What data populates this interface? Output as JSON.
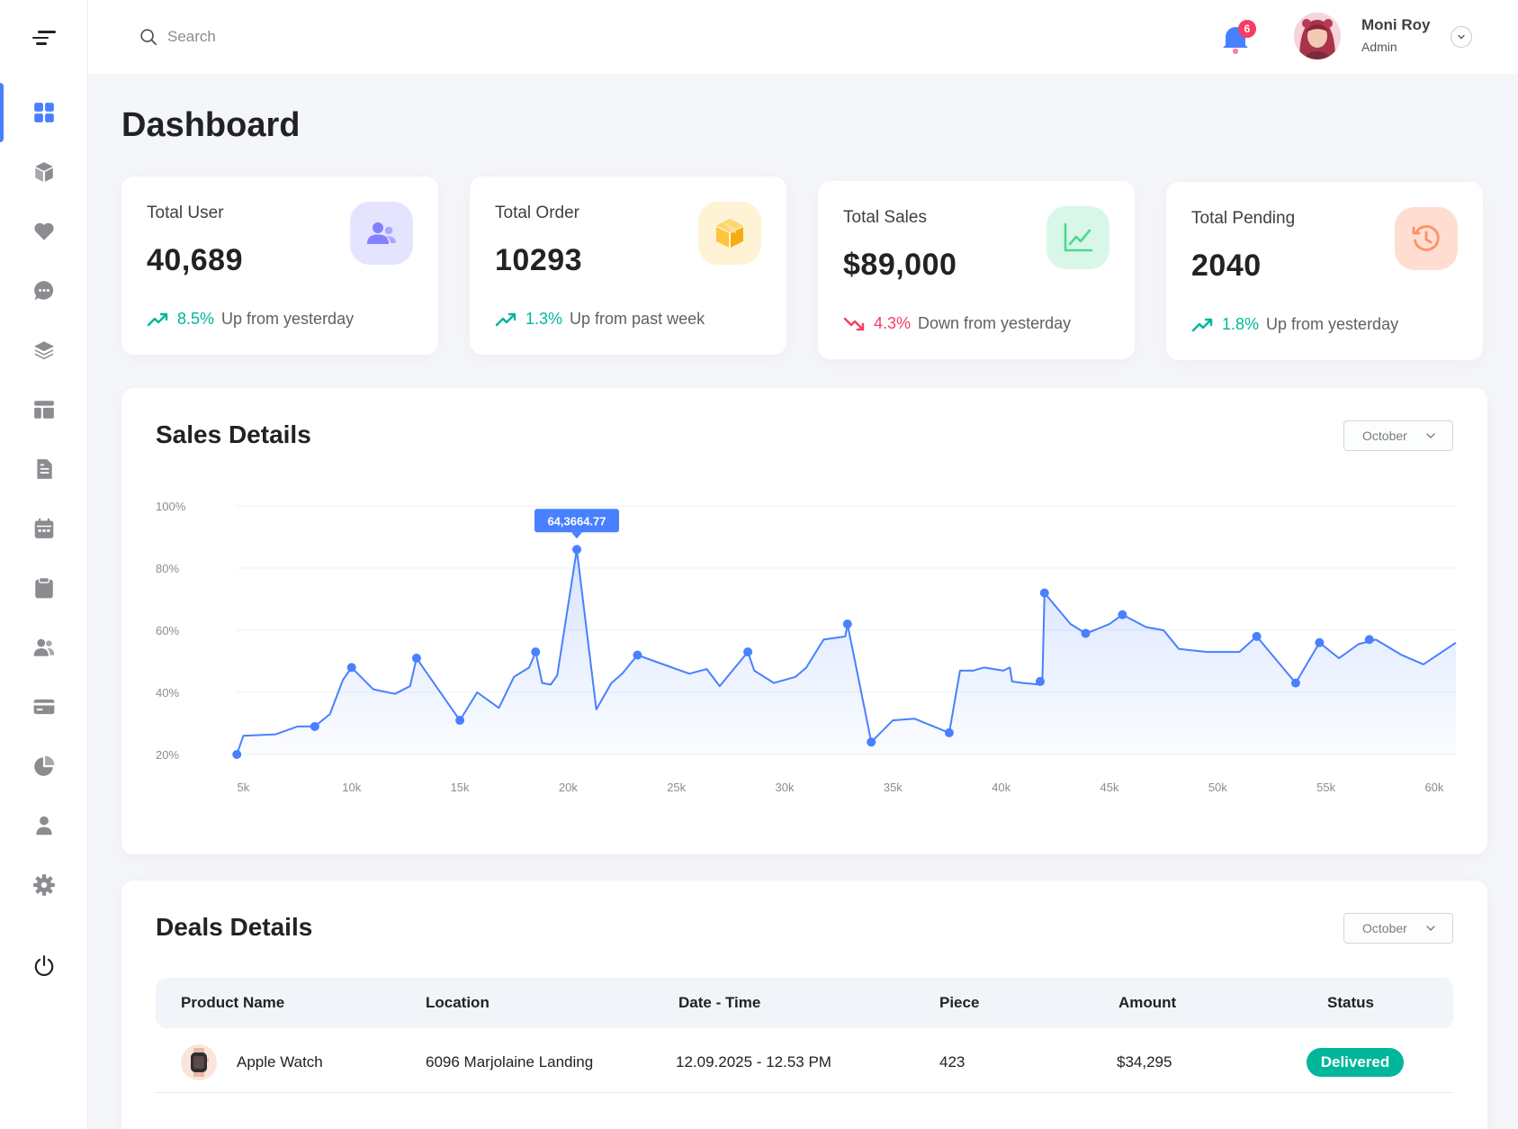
{
  "search": {
    "placeholder": "Search"
  },
  "notifications": {
    "count": "6"
  },
  "user": {
    "name": "Moni Roy",
    "role": "Admin"
  },
  "page": {
    "title": "Dashboard"
  },
  "sidebar": {
    "items": [
      {
        "icon": "dashboard-icon",
        "active": true
      },
      {
        "icon": "products-icon"
      },
      {
        "icon": "favorites-icon"
      },
      {
        "icon": "inbox-icon"
      },
      {
        "icon": "order-lists-icon"
      },
      {
        "icon": "product-stock-icon"
      },
      {
        "icon": "pricing-icon"
      },
      {
        "icon": "calendar-icon"
      },
      {
        "icon": "todo-icon"
      },
      {
        "icon": "contact-icon"
      },
      {
        "icon": "invoice-icon"
      },
      {
        "icon": "charts-icon"
      },
      {
        "icon": "team-icon"
      },
      {
        "icon": "settings-icon"
      },
      {
        "icon": "logout-icon"
      }
    ]
  },
  "stats": [
    {
      "label": "Total User",
      "value": "40,689",
      "pct": "8.5%",
      "trend_text": "Up from yesterday",
      "direction": "up",
      "icon": "users-icon",
      "icon_color": "#8280ff",
      "icon_bg": "#e5e4ff"
    },
    {
      "label": "Total Order",
      "value": "10293",
      "pct": "1.3%",
      "trend_text": "Up from past week",
      "direction": "up",
      "icon": "box-icon",
      "icon_color": "#fec53d",
      "icon_bg": "#fff3d6"
    },
    {
      "label": "Total Sales",
      "value": "$89,000",
      "pct": "4.3%",
      "trend_text": "Down from yesterday",
      "direction": "down",
      "icon": "line-chart-icon",
      "icon_color": "#4ad991",
      "icon_bg": "#d9f7e8"
    },
    {
      "label": "Total Pending",
      "value": "2040",
      "pct": "1.8%",
      "trend_text": "Up from yesterday",
      "direction": "up",
      "icon": "history-icon",
      "icon_color": "#ff9066",
      "icon_bg": "#ffded1"
    }
  ],
  "sales": {
    "title": "Sales Details",
    "month": "October",
    "tooltip": "64,3664.77"
  },
  "chart_data": {
    "type": "area",
    "title": "Sales Details",
    "xlabel": "",
    "ylabel": "",
    "x_ticks": [
      "5k",
      "10k",
      "15k",
      "20k",
      "25k",
      "30k",
      "35k",
      "40k",
      "45k",
      "50k",
      "55k",
      "60k"
    ],
    "y_ticks": [
      "100%",
      "80%",
      "60%",
      "40%",
      "20%"
    ],
    "xlim": [
      4650,
      61000
    ],
    "ylim": [
      20,
      100
    ],
    "line_color": "#4880ff",
    "series": [
      {
        "points": [
          [
            4700,
            20
          ],
          [
            5000,
            26
          ],
          [
            6500,
            26.5
          ],
          [
            7500,
            29
          ],
          [
            8300,
            29
          ],
          [
            9000,
            33
          ],
          [
            9600,
            44
          ],
          [
            10000,
            48
          ],
          [
            11000,
            41
          ],
          [
            12000,
            39.5
          ],
          [
            12700,
            42
          ],
          [
            13000,
            51
          ],
          [
            15000,
            31
          ],
          [
            15800,
            40
          ],
          [
            16800,
            35
          ],
          [
            17500,
            45
          ],
          [
            18200,
            48
          ],
          [
            18500,
            53
          ],
          [
            18800,
            43
          ],
          [
            19200,
            42.5
          ],
          [
            19500,
            45.5
          ],
          [
            20400,
            86
          ],
          [
            21300,
            34.5
          ],
          [
            22000,
            43
          ],
          [
            22500,
            46
          ],
          [
            23200,
            52
          ],
          [
            24000,
            50
          ],
          [
            25600,
            46
          ],
          [
            26400,
            47.5
          ],
          [
            27000,
            42
          ],
          [
            28300,
            53
          ],
          [
            28600,
            47
          ],
          [
            29500,
            43
          ],
          [
            30500,
            45
          ],
          [
            31000,
            48
          ],
          [
            31800,
            57
          ],
          [
            32800,
            58
          ],
          [
            32900,
            62
          ],
          [
            34000,
            24
          ],
          [
            35000,
            31
          ],
          [
            36000,
            31.5
          ],
          [
            37600,
            27
          ],
          [
            38100,
            47
          ],
          [
            38700,
            47
          ],
          [
            39200,
            48
          ],
          [
            40100,
            47
          ],
          [
            40400,
            48
          ],
          [
            40500,
            43.5
          ],
          [
            41000,
            43
          ],
          [
            41800,
            42.5
          ],
          [
            41900,
            43.5
          ],
          [
            42000,
            72
          ],
          [
            43200,
            62
          ],
          [
            43900,
            59
          ],
          [
            44300,
            60
          ],
          [
            45000,
            62
          ],
          [
            45600,
            65
          ],
          [
            46700,
            61
          ],
          [
            47500,
            60
          ],
          [
            48200,
            54
          ],
          [
            49500,
            53
          ],
          [
            51000,
            53
          ],
          [
            51800,
            58
          ],
          [
            53600,
            43
          ],
          [
            54700,
            56
          ],
          [
            55600,
            51
          ],
          [
            56500,
            55.5
          ],
          [
            57300,
            57
          ],
          [
            58500,
            52
          ],
          [
            59500,
            49
          ],
          [
            61000,
            56
          ]
        ],
        "markers": [
          [
            4700,
            20
          ],
          [
            8300,
            29
          ],
          [
            10000,
            48
          ],
          [
            13000,
            51
          ],
          [
            15000,
            31
          ],
          [
            18500,
            53
          ],
          [
            20400,
            86
          ],
          [
            23200,
            52
          ],
          [
            28300,
            53
          ],
          [
            32900,
            62
          ],
          [
            34000,
            24
          ],
          [
            37600,
            27
          ],
          [
            42000,
            72
          ],
          [
            41800,
            43.5
          ],
          [
            43900,
            59
          ],
          [
            45600,
            65
          ],
          [
            51800,
            58
          ],
          [
            53600,
            43
          ],
          [
            54700,
            56
          ],
          [
            57000,
            57
          ]
        ]
      }
    ],
    "tooltip_point": [
      20400,
      86
    ],
    "grid": true
  },
  "deals": {
    "title": "Deals Details",
    "month": "October",
    "columns": [
      "Product Name",
      "Location",
      "Date - Time",
      "Piece",
      "Amount",
      "Status"
    ],
    "rows": [
      {
        "product": "Apple Watch",
        "location": "6096 Marjolaine Landing",
        "datetime": "12.09.2025 - 12.53 PM",
        "piece": "423",
        "amount": "$34,295",
        "status": "Delivered"
      }
    ]
  }
}
